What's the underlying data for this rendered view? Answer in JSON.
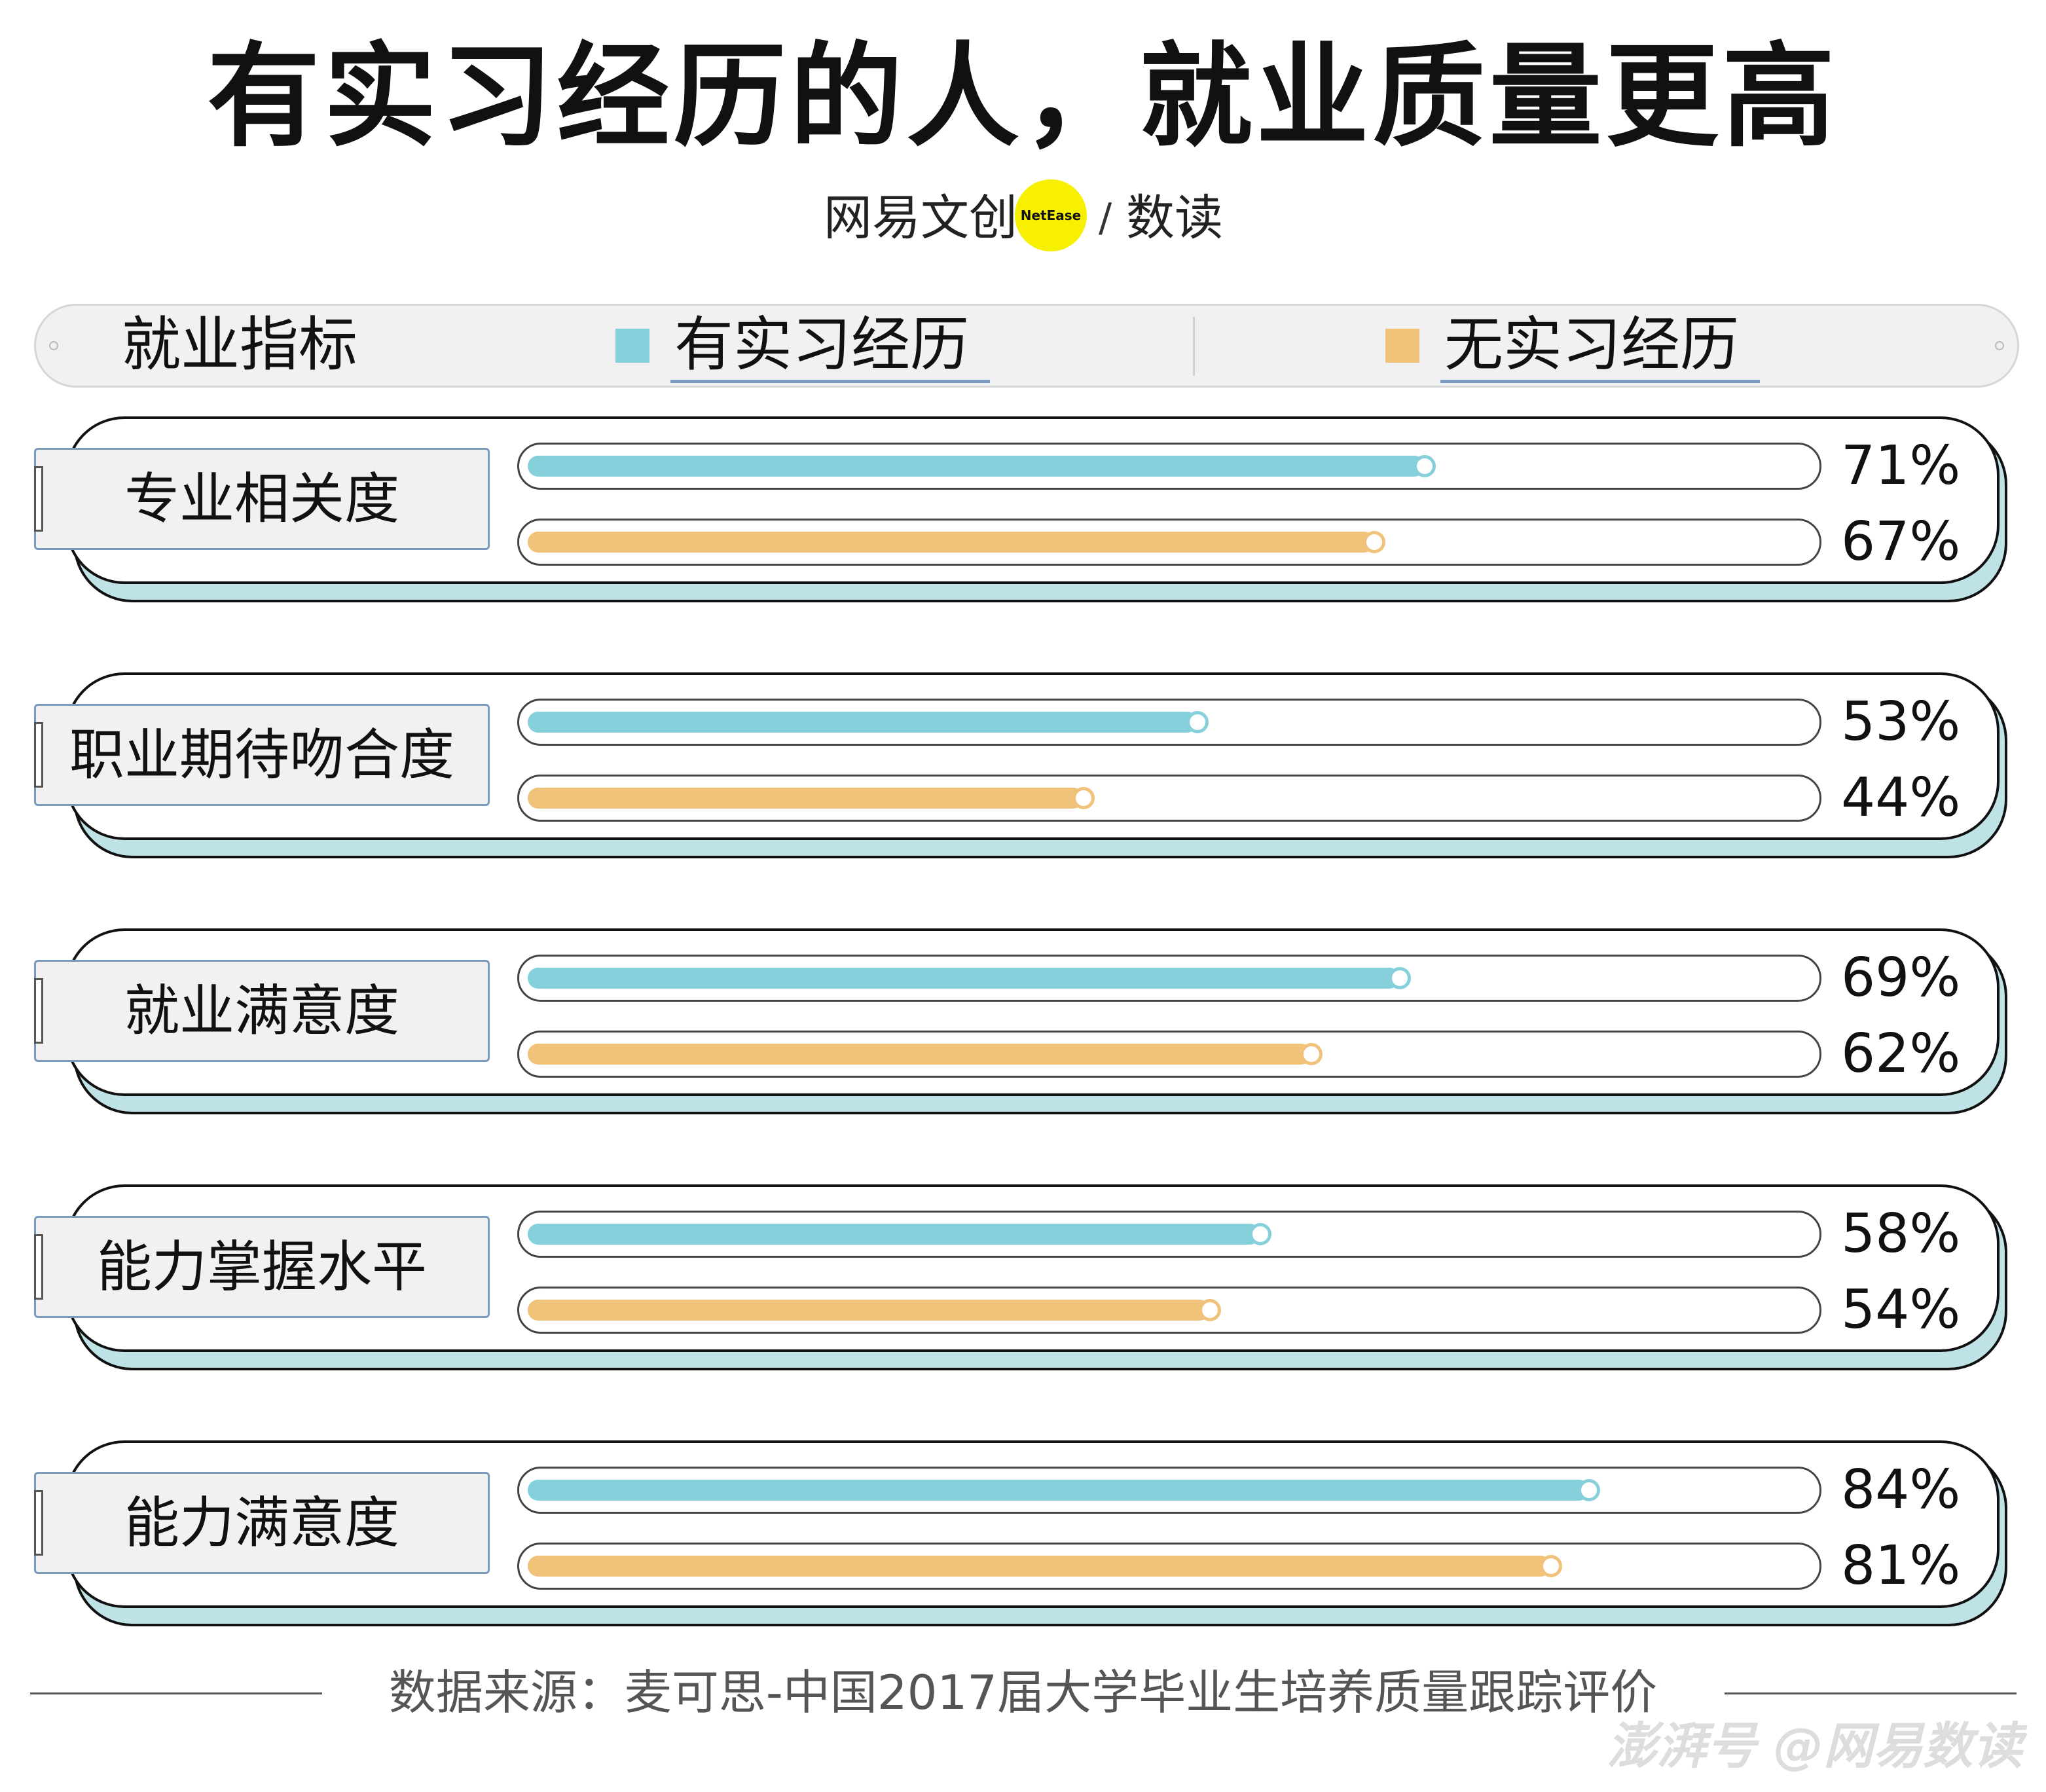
{
  "title": "有实习经历的人，就业质量更高",
  "brand": {
    "name_cn": "网易文创",
    "name_en": "NetEase",
    "separator": "/",
    "sub": "数读"
  },
  "header": {
    "label": "就业指标"
  },
  "chart_data": {
    "type": "bar",
    "orientation": "horizontal",
    "categories": [
      "专业相关度",
      "职业期待吻合度",
      "就业满意度",
      "能力掌握水平",
      "能力满意度"
    ],
    "series": [
      {
        "name": "有实习经历",
        "color": "#86d0dc",
        "values": [
          71,
          53,
          69,
          58,
          84
        ],
        "labels": [
          "71%",
          "53%",
          "69%",
          "58%",
          "84%"
        ]
      },
      {
        "name": "无实习经历",
        "color": "#f0c27a",
        "values": [
          67,
          44,
          62,
          54,
          81
        ],
        "labels": [
          "67%",
          "44%",
          "62%",
          "54%",
          "81%"
        ]
      }
    ],
    "xlim": [
      0,
      100
    ],
    "unit": "%"
  },
  "source": "数据来源：麦可思-中国2017届大学毕业生培养质量跟踪评价",
  "watermark": "澎湃号 @网易数读"
}
